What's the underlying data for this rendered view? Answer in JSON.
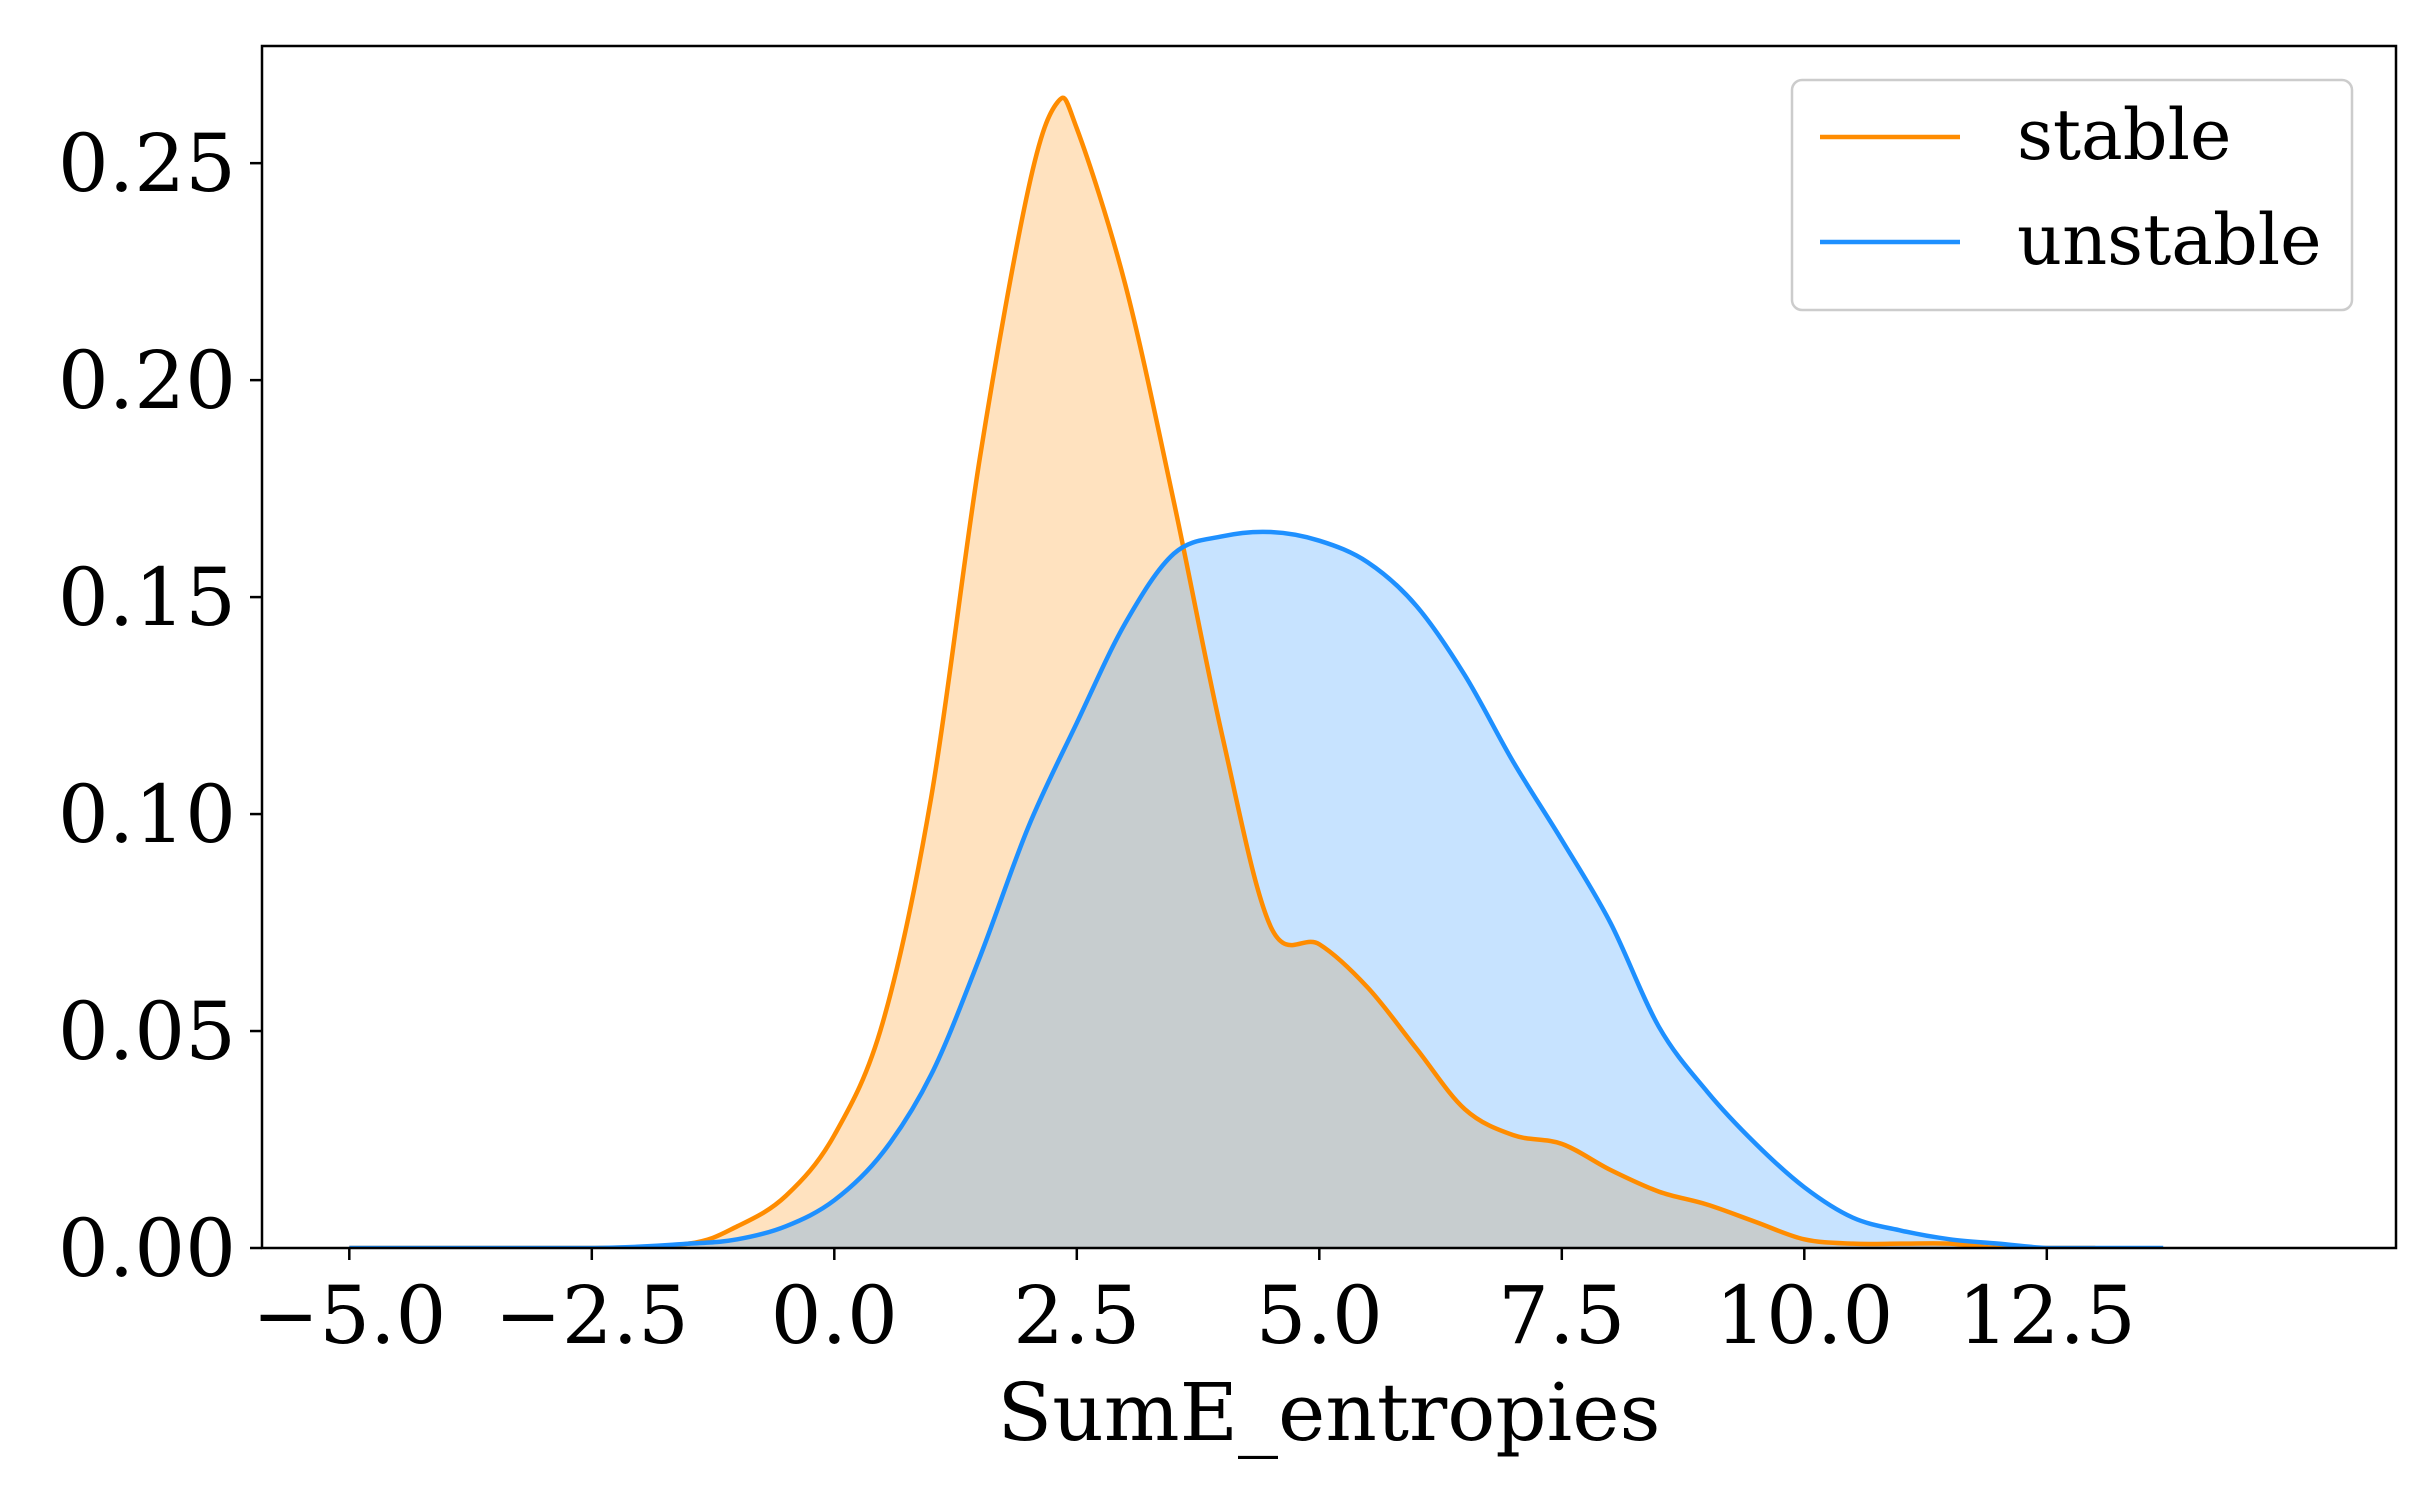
{
  "chart_data": {
    "type": "area",
    "title": "",
    "xlabel": "SumE_entropies",
    "ylabel": "",
    "xlim": [
      -5.9,
      16.1
    ],
    "ylim": [
      0,
      0.277
    ],
    "x_ticks": [
      "−5.0",
      "−2.5",
      "0.0",
      "2.5",
      "5.0",
      "7.5",
      "10.0",
      "12.5"
    ],
    "x_tick_values": [
      -5.0,
      -2.5,
      0.0,
      2.5,
      5.0,
      7.5,
      10.0,
      12.5
    ],
    "y_ticks": [
      "0.00",
      "0.05",
      "0.10",
      "0.15",
      "0.20",
      "0.25"
    ],
    "y_tick_values": [
      0.0,
      0.05,
      0.1,
      0.15,
      0.2,
      0.25
    ],
    "grid": false,
    "legend_position": "top-right",
    "series": [
      {
        "name": "stable",
        "color": "#ff8c00",
        "fill": "#fde2c2",
        "x": [
          -5.0,
          -2.5,
          -1.5,
          -1.0,
          -0.5,
          0.0,
          0.5,
          1.0,
          1.5,
          2.0,
          2.3,
          2.5,
          3.0,
          3.5,
          4.0,
          4.5,
          5.0,
          5.5,
          6.0,
          6.5,
          7.0,
          7.5,
          8.0,
          8.5,
          9.0,
          9.5,
          10.0,
          10.5,
          11.0,
          11.5,
          12.0,
          12.5,
          13.0
        ],
        "y": [
          0.0,
          0.0,
          0.001,
          0.005,
          0.012,
          0.026,
          0.052,
          0.104,
          0.182,
          0.244,
          0.264,
          0.258,
          0.222,
          0.172,
          0.118,
          0.074,
          0.07,
          0.06,
          0.046,
          0.032,
          0.026,
          0.024,
          0.018,
          0.013,
          0.01,
          0.006,
          0.002,
          0.001,
          0.001,
          0.001,
          0.0,
          0.0,
          0.0
        ]
      },
      {
        "name": "unstable",
        "color": "#1e90ff",
        "fill": "#c5e2fb",
        "x": [
          -5.0,
          -2.5,
          -1.5,
          -1.0,
          -0.5,
          0.0,
          0.5,
          1.0,
          1.5,
          2.0,
          2.5,
          3.0,
          3.5,
          4.0,
          4.5,
          5.0,
          5.5,
          6.0,
          6.5,
          7.0,
          7.5,
          8.0,
          8.5,
          9.0,
          9.5,
          10.0,
          10.5,
          11.0,
          11.5,
          12.0,
          12.5,
          13.0,
          13.7
        ],
        "y": [
          0.0,
          0.0,
          0.001,
          0.002,
          0.005,
          0.011,
          0.022,
          0.04,
          0.067,
          0.097,
          0.121,
          0.144,
          0.16,
          0.164,
          0.165,
          0.163,
          0.158,
          0.148,
          0.132,
          0.112,
          0.094,
          0.075,
          0.051,
          0.036,
          0.024,
          0.014,
          0.007,
          0.004,
          0.002,
          0.001,
          0.0,
          0.0,
          0.0
        ]
      }
    ],
    "overlap_color": "#c6cccd"
  }
}
